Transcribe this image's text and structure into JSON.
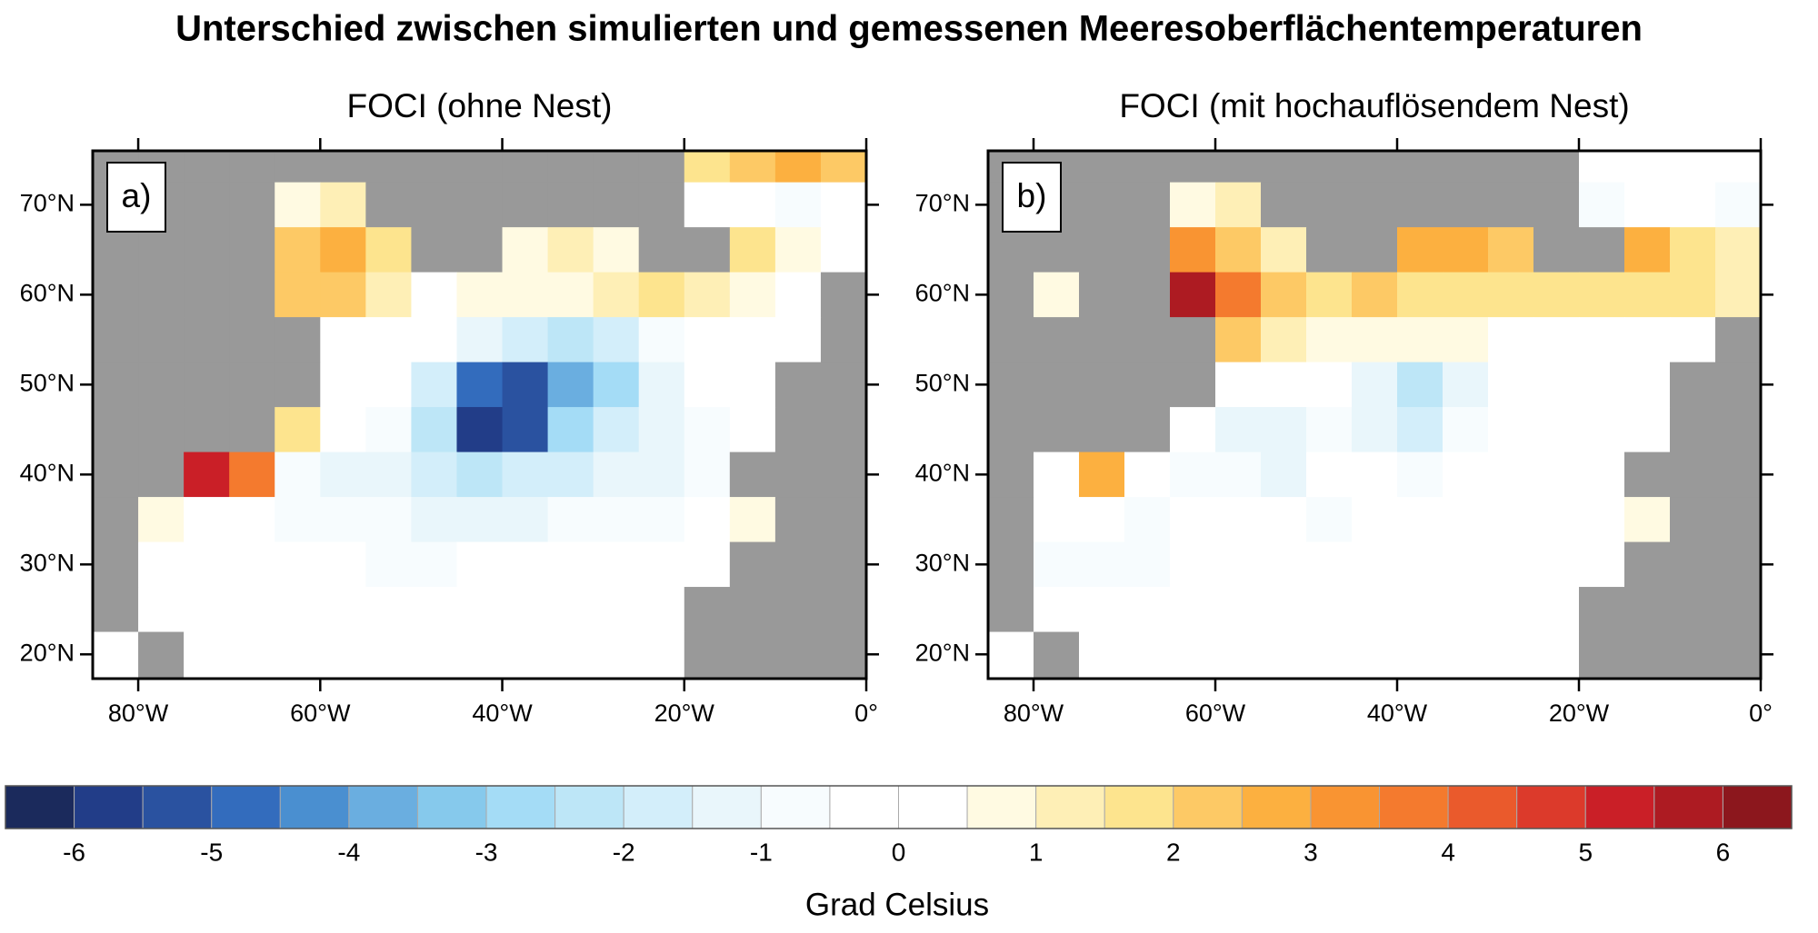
{
  "title": "Unterschied zwischen simulierten und gemessenen Meeresoberflächentemperaturen",
  "land_color": "#999999",
  "axes": {
    "xlim": [
      -85,
      0
    ],
    "ylim": [
      17.3,
      76
    ],
    "xticks": [
      {
        "value": -80,
        "label": "80°W"
      },
      {
        "value": -60,
        "label": "60°W"
      },
      {
        "value": -40,
        "label": "40°W"
      },
      {
        "value": -20,
        "label": "20°W"
      },
      {
        "value": 0,
        "label": "0°"
      }
    ],
    "yticks": [
      {
        "value": 20,
        "label": "20°N"
      },
      {
        "value": 30,
        "label": "30°N"
      },
      {
        "value": 40,
        "label": "40°N"
      },
      {
        "value": 50,
        "label": "50°N"
      },
      {
        "value": 60,
        "label": "60°N"
      },
      {
        "value": 70,
        "label": "70°N"
      }
    ]
  },
  "grid": {
    "lon_edges": [
      -85,
      -80,
      -75,
      -70,
      -65,
      -60,
      -55,
      -50,
      -45,
      -40,
      -35,
      -30,
      -25,
      -20,
      -15,
      -10,
      -5,
      0
    ],
    "lat_edges": [
      77.5,
      72.5,
      67.5,
      62.5,
      57.5,
      52.5,
      47.5,
      42.5,
      37.5,
      32.5,
      27.5,
      22.5,
      17.5
    ]
  },
  "panels": [
    {
      "title": "FOCI (ohne Nest)",
      "label": "a)",
      "values": [
        [
          null,
          null,
          null,
          null,
          null,
          null,
          null,
          null,
          null,
          null,
          null,
          null,
          null,
          1.5,
          2,
          2.5,
          2
        ],
        [
          null,
          null,
          null,
          null,
          0.8,
          1,
          null,
          null,
          null,
          null,
          null,
          null,
          null,
          -0.3,
          -0.5,
          -1,
          -0.5
        ],
        [
          null,
          null,
          null,
          null,
          2,
          2.5,
          1.5,
          null,
          null,
          0.5,
          1,
          0.8,
          null,
          null,
          1.5,
          0.5,
          -0.5
        ],
        [
          null,
          null,
          null,
          null,
          2,
          2,
          1,
          0.3,
          0.8,
          0.5,
          0.5,
          1,
          1.5,
          1,
          0.5,
          0.3,
          null
        ],
        [
          null,
          null,
          null,
          null,
          null,
          0,
          0,
          -0.3,
          -1.5,
          -2,
          -2.5,
          -2,
          -1,
          -0.5,
          0,
          -0.3,
          null
        ],
        [
          null,
          null,
          null,
          null,
          null,
          0,
          -0.5,
          -2,
          -5,
          -5.5,
          -4,
          -3,
          -1.5,
          -0.5,
          -0.3,
          null,
          null
        ],
        [
          null,
          null,
          null,
          null,
          1.5,
          -0.3,
          -0.8,
          -2.5,
          -6,
          -5.5,
          -3,
          -1.8,
          -1.3,
          -0.8,
          -0.5,
          null,
          null
        ],
        [
          null,
          null,
          5,
          3.5,
          -0.8,
          -1.2,
          -1.5,
          -2,
          -2.3,
          -2,
          -1.8,
          -1.5,
          -1.5,
          -1,
          null,
          null,
          null
        ],
        [
          null,
          0.5,
          -0.3,
          -0.5,
          -0.8,
          -1,
          -1,
          -1.2,
          -1.2,
          -1.2,
          -1,
          -1,
          -0.8,
          -0.5,
          0.8,
          null,
          null
        ],
        [
          null,
          -0.3,
          -0.5,
          -0.3,
          -0.5,
          -0.5,
          -0.6,
          -0.6,
          -0.5,
          -0.5,
          -0.4,
          -0.3,
          -0.3,
          0.3,
          null,
          null,
          null
        ],
        [
          null,
          0,
          -0.2,
          -0.2,
          -0.3,
          -0.3,
          -0.3,
          -0.3,
          -0.3,
          -0.3,
          -0.3,
          -0.2,
          -0.2,
          null,
          null,
          null,
          null
        ],
        [
          0,
          null,
          0,
          -0.1,
          -0.2,
          -0.2,
          -0.2,
          -0.2,
          -0.2,
          -0.2,
          -0.1,
          -0.1,
          -0.1,
          null,
          null,
          null,
          null
        ]
      ]
    },
    {
      "title": "FOCI (mit hochauflösendem Nest)",
      "label": "b)",
      "values": [
        [
          null,
          null,
          null,
          null,
          null,
          null,
          null,
          null,
          null,
          null,
          null,
          null,
          null,
          -0.2,
          0,
          -0.3,
          -0.3
        ],
        [
          null,
          null,
          null,
          null,
          0.8,
          1,
          null,
          null,
          null,
          null,
          null,
          null,
          null,
          -0.6,
          -0.5,
          -0.3,
          -0.6
        ],
        [
          null,
          null,
          null,
          null,
          3,
          2,
          1,
          null,
          null,
          2.5,
          2.5,
          2,
          null,
          null,
          2.5,
          1.5,
          1
        ],
        [
          null,
          0.8,
          null,
          null,
          5.5,
          3.5,
          2,
          1.5,
          2,
          1.5,
          1.5,
          1.5,
          1.5,
          1.5,
          1.5,
          1.5,
          1
        ],
        [
          null,
          null,
          null,
          null,
          null,
          2,
          1,
          0.6,
          0.5,
          0.5,
          0.5,
          0.4,
          0.4,
          0.3,
          0.2,
          0.2,
          null
        ],
        [
          null,
          null,
          null,
          null,
          null,
          0,
          0,
          -0.3,
          -1.5,
          -2.5,
          -1.5,
          -0.3,
          -0.2,
          -0.2,
          -0.3,
          null,
          null
        ],
        [
          null,
          null,
          null,
          null,
          -0.2,
          -1.2,
          -1.5,
          -1,
          -1.5,
          -2,
          -1,
          -0.3,
          -0.2,
          -0.2,
          -0.2,
          null,
          null
        ],
        [
          null,
          -0.3,
          2.5,
          -0.3,
          -1,
          -1,
          -1.2,
          -0.5,
          -0.5,
          -0.6,
          -0.5,
          -0.4,
          -0.3,
          -0.3,
          null,
          null,
          null
        ],
        [
          null,
          -0.4,
          -0.5,
          -0.6,
          -0.4,
          -0.3,
          -0.5,
          -0.8,
          -0.5,
          -0.3,
          -0.3,
          -0.3,
          -0.3,
          -0.2,
          0.8,
          null,
          null
        ],
        [
          null,
          -0.8,
          -0.8,
          -0.6,
          -0.3,
          -0.3,
          -0.3,
          -0.3,
          -0.3,
          -0.3,
          -0.3,
          -0.2,
          -0.2,
          -0.2,
          null,
          null,
          null
        ],
        [
          null,
          -0.3,
          -0.2,
          -0.2,
          -0.2,
          -0.2,
          -0.2,
          -0.2,
          -0.2,
          -0.2,
          -0.2,
          -0.2,
          -0.2,
          null,
          null,
          null,
          null
        ],
        [
          0,
          null,
          -0.2,
          -0.1,
          -0.1,
          -0.1,
          -0.1,
          -0.1,
          -0.1,
          -0.1,
          -0.1,
          -0.1,
          -0.1,
          null,
          null,
          null,
          null
        ]
      ]
    }
  ],
  "colorbar": {
    "label": "Grad Celsius",
    "levels": [
      -6,
      -5.5,
      -5,
      -4.5,
      -4,
      -3.5,
      -3,
      -2.5,
      -2,
      -1.5,
      -1,
      -0.5,
      0,
      0.5,
      1,
      1.5,
      2,
      2.5,
      3,
      3.5,
      4,
      4.5,
      5,
      5.5,
      6
    ],
    "colors": [
      "#1b2a5c",
      "#223d88",
      "#2a52a0",
      "#336cbd",
      "#4a8fd0",
      "#6aaee0",
      "#86c9ec",
      "#a4dcf6",
      "#bde6f7",
      "#d3eefa",
      "#e9f6fb",
      "#f7fcfe",
      "#ffffff",
      "#ffffff",
      "#fffae2",
      "#feefb6",
      "#fde48e",
      "#fdc965",
      "#fcb040",
      "#f99432",
      "#f47a2e",
      "#ea5a2c",
      "#dc3a2b",
      "#ca1f27",
      "#ad1b22",
      "#8c171d"
    ],
    "ticks": [
      -6,
      -5,
      -4,
      -3,
      -2,
      -1,
      0,
      1,
      2,
      3,
      4,
      5,
      6
    ]
  }
}
